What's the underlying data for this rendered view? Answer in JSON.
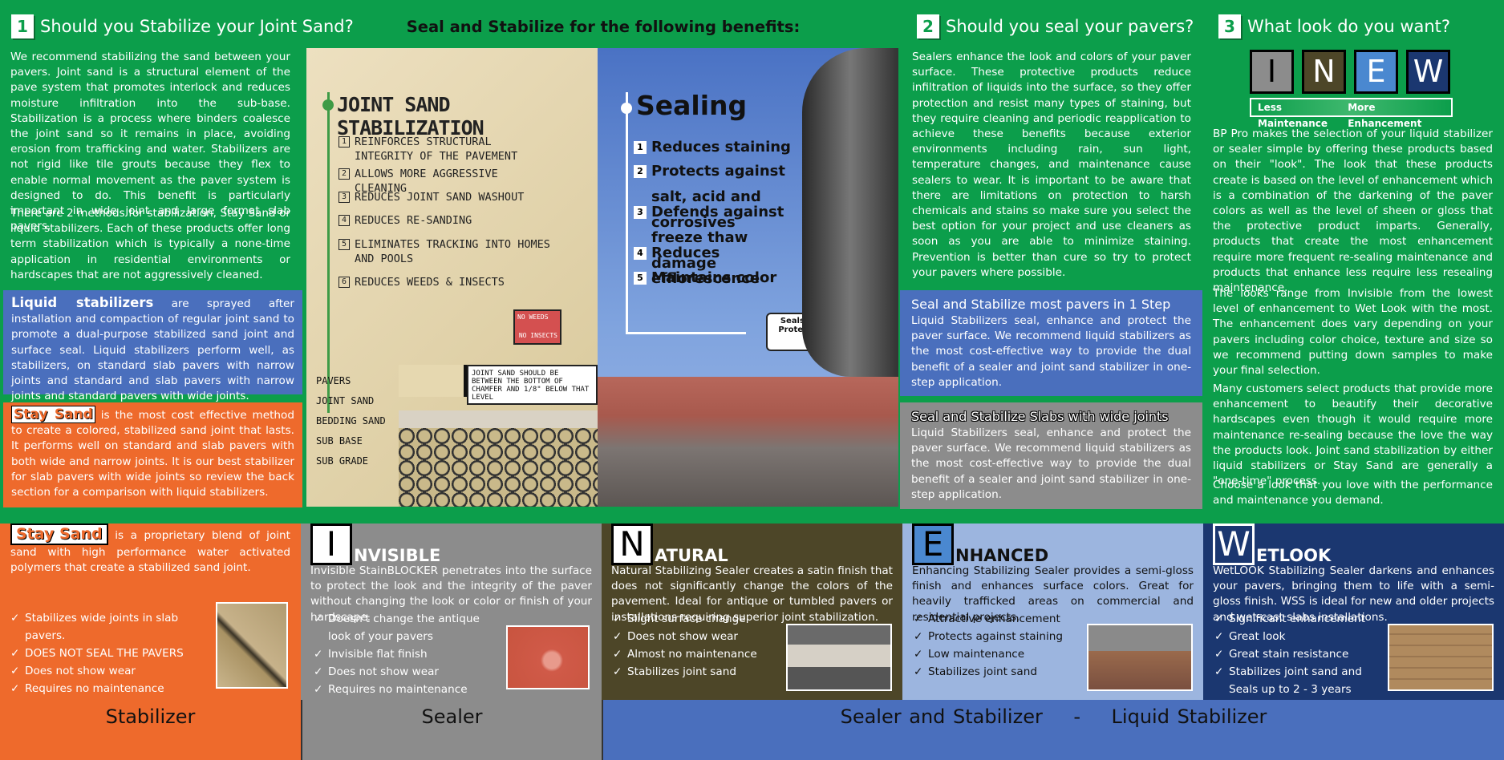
{
  "section1": {
    "num": "1",
    "heading": "Should you Stabilize your Joint Sand?",
    "p1": "We recommend stabilizing the sand between your pavers. Joint sand is a structural element of the pave system that promotes interlock and reduces moisture infiltration into the sub-base. Stabilization is a process where binders coalesce the joint sand so it remains in place, avoiding erosion from trafficking and water. Stabilizers are not rigid like tile grouts because they flex to enable normal movement as the paver system is designed to do. This benefit is particularly important in wide joint and large format slab pavers.",
    "p2": "There are 2 methods for stabilization, Stay Sand or liquid stabilizers. Each of these products offer long term stabilization which is typically a none-time application in residential environments or hardscapes that are not aggressively cleaned."
  },
  "liquid": {
    "title": "Liquid stabilizers",
    "text": " are sprayed after installation and compaction of regular joint sand to promote a dual-purpose stabilized sand joint and surface seal. Liquid stabilizers perform well, as stabilizers, on standard slab pavers with narrow joints and standard and slab pavers with narrow joints and standard pavers with wide joints."
  },
  "staysand": {
    "title": "Stay Sand",
    "text": " is the most cost effective method to create a colored, stabilized sand joint that lasts. It performs well on standard and slab pavers with both wide and narrow joints. It is our best stabilizer for slab pavers with wide joints so review the back section for a comparison with liquid stabilizers."
  },
  "center": {
    "title": "Seal and Stabilize for the following benefits:",
    "jss_title": "JOINT SAND STABILIZATION",
    "jss_items": [
      {
        "n": "1",
        "t": "REINFORCES STRUCTURAL INTEGRITY OF THE PAVEMENT"
      },
      {
        "n": "2",
        "t": "ALLOWS MORE AGGRESSIVE CLEANING"
      },
      {
        "n": "3",
        "t": "REDUCES JOINT SAND WASHOUT"
      },
      {
        "n": "4",
        "t": "REDUCES RE-SANDING"
      },
      {
        "n": "5",
        "t": "ELIMINATES TRACKING INTO HOMES AND POOLS"
      },
      {
        "n": "6",
        "t": "REDUCES WEEDS & INSECTS"
      }
    ],
    "no_weeds": "NO WEEDS",
    "no_insects": "NO INSECTS",
    "layers": [
      "PAVERS",
      "JOINT SAND",
      "BEDDING SAND",
      "SUB BASE",
      "SUB GRADE"
    ],
    "note": "JOINT SAND SHOULD BE BETWEEN THE BOTTOM OF CHAMFER AND 1/8\" BELOW THAT LEVEL",
    "seal_title": "Sealing",
    "seal_items": [
      {
        "n": "1",
        "t": "Reduces staining"
      },
      {
        "n": "2",
        "t": "Protects against salt, acid and corrosives"
      },
      {
        "n": "3",
        "t": "Defends against freeze thaw damage"
      },
      {
        "n": "4",
        "t": "Reduces efflorescence"
      },
      {
        "n": "5",
        "t": "Maintains color"
      }
    ],
    "badge_top": "Seals",
    "badge_amp": "&",
    "badge_bot": "Protects"
  },
  "section2": {
    "num": "2",
    "heading": "Should you seal your pavers?",
    "text": "Sealers enhance the look and colors of your paver surface. These protective products reduce infiltration of liquids into the surface, so they offer protection and resist many types of staining, but they require cleaning and periodic reapplication to achieve these benefits because exterior environments including rain, sun light, temperature changes, and maintenance cause sealers to wear. It is important to be aware that there are limitations on protection to harsh chemicals and stains so make sure you select the best option for your project and use cleaners as soon as you are able to minimize staining. Prevention is better than cure so try to protect your pavers where possible."
  },
  "onestep": {
    "title": "Seal and Stabilize most pavers in 1 Step",
    "text": "Liquid Stabilizers seal, enhance and protect the paver surface. We recommend liquid stabilizers as the most cost-effective way to provide the dual benefit of a sealer and joint sand stabilizer in one-step application."
  },
  "slabs": {
    "title": "Seal and Stabilize Slabs with wide joints",
    "text": "Liquid Stabilizers seal, enhance and protect the paver surface. We recommend liquid stabilizers as the most cost-effective way to provide the dual benefit of a sealer and joint sand stabilizer in one-step application."
  },
  "section3": {
    "num": "3",
    "heading": "What look do you want?",
    "letters": [
      "I",
      "N",
      "E",
      "W"
    ],
    "less": "Less Maintenance",
    "more": "More Enhancement",
    "p1": "BP Pro makes the selection of your liquid stabilizer or sealer simple by offering these products based on their \"look\". The look that these products create is based on the level of enhancement which is a combination of the darkening of the paver colors as well as the level of sheen or gloss that the protective product imparts. Generally, products that create the most enhancement require more frequent re-sealing maintenance and products that enhance less require less resealing maintenance.",
    "p2": "The looks range from Invisible from the lowest level of enhancement to Wet Look with the most. The enhancement does vary depending on your pavers including color choice, texture and size so we recommend putting down samples to make your final selection.",
    "p3": "Many customers select products that provide more enhancement to beautify their decorative hardscapes even though it would require more maintenance re-sealing because the love the way the products look. Joint sand stabilization by either liquid stabilizers or Stay Sand are generally a \"one-time\" process.",
    "p4": "Choose a look that you love with the performance and maintenance you demand."
  },
  "bottom": {
    "stay": {
      "title": "Stay Sand",
      "text": " is a proprietary blend of joint sand with high performance water activated polymers that create a stabilized sand joint.",
      "items": [
        "Stabilizes wide joints in slab pavers.",
        "DOES NOT SEAL THE PAVERS",
        "Does not show wear",
        "Requires no maintenance"
      ]
    },
    "invisible": {
      "letter": "I",
      "rest": "NVISIBLE",
      "text": "Invisible StainBLOCKER penetrates into the surface to protect the look and the integrity of the paver without changing the look or color or finish of your hardscape.",
      "items": [
        "Doesn't change the antique look of your pavers",
        "Invisible flat finish",
        "Does not show wear",
        "Requires no maintenance"
      ]
    },
    "natural": {
      "letter": "N",
      "rest": "ATURAL",
      "text": "Natural Stabilizing Sealer creates a satin finish that does not significantly change the colors of the pavement. Ideal for antique or tumbled pavers or installations requiring superior joint stabilization.",
      "items": [
        "Slight surface change",
        "Does not show wear",
        "Almost no maintenance",
        "Stabilizes joint sand"
      ]
    },
    "enhanced": {
      "letter": "E",
      "rest": "NHANCED",
      "text": "Enhancing Stabilizing Sealer provides a semi-gloss finish and enhances surface colors. Great for heavily trafficked areas on commercial and residential projects.",
      "items": [
        "Attractive enhancement",
        "Protects against staining",
        "Low maintenance",
        "Stabilizes joint sand"
      ]
    },
    "wetlook": {
      "letter": "W",
      "rest": "ETLOOK",
      "text": "WetLOOK Stabilizing Sealer darkens and enhances your pavers, bringing them to life with a semi-gloss finish. WSS is ideal for new and older projects and wet-cast slabs installations.",
      "items": [
        "Significant enhancement",
        "Great look",
        "Great stain resistance",
        "Stabilizes joint sand and Seals up to 2 - 3 years"
      ]
    }
  },
  "footer": {
    "stabilizer": "Stabilizer",
    "sealer": "Sealer",
    "both": "Sealer and Stabilizer",
    "dash": "-",
    "liquid": "Liquid Stabilizer"
  },
  "colors": {
    "green": "#0c9e4b",
    "blue": "#4a6fbd",
    "orange": "#ee6a2c",
    "gray": "#8c8c8c",
    "olive": "#4d4628",
    "lightblue": "#9cb5df",
    "navy": "#1b3770"
  }
}
